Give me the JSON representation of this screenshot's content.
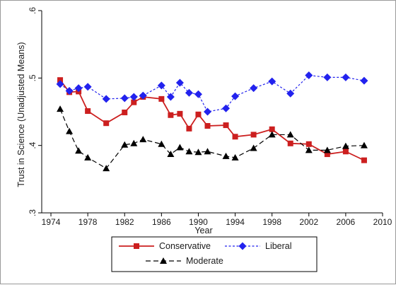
{
  "chart_data": {
    "type": "line",
    "title": "",
    "xlabel": "Year",
    "ylabel": "Trust in Science (Unadjusted Means)",
    "xlim": [
      1973,
      2010
    ],
    "ylim": [
      0.3,
      0.6
    ],
    "x_ticks": [
      1974,
      1978,
      1982,
      1986,
      1990,
      1994,
      1998,
      2002,
      2006,
      2010
    ],
    "x_tick_labels": [
      "1974",
      "1978",
      "1982",
      "1986",
      "1990",
      "1994",
      "1998",
      "2002",
      "2006",
      "2010"
    ],
    "y_ticks": [
      0.3,
      0.4,
      0.5,
      0.6
    ],
    "y_tick_labels": [
      ".3",
      ".4",
      ".5",
      ".6"
    ],
    "grid": false,
    "legend_position": "bottom",
    "series": [
      {
        "name": "Conservative",
        "color": "#cc1f1f",
        "line_style": "solid",
        "marker": "square",
        "x": [
          1975,
          1976,
          1977,
          1978,
          1980,
          1982,
          1983,
          1984,
          1986,
          1987,
          1988,
          1989,
          1990,
          1991,
          1993,
          1994,
          1996,
          1998,
          2000,
          2002,
          2004,
          2006,
          2008
        ],
        "y": [
          0.497,
          0.479,
          0.48,
          0.451,
          0.433,
          0.449,
          0.464,
          0.472,
          0.469,
          0.445,
          0.447,
          0.425,
          0.446,
          0.429,
          0.43,
          0.413,
          0.416,
          0.424,
          0.403,
          0.402,
          0.387,
          0.391,
          0.378
        ]
      },
      {
        "name": "Liberal",
        "color": "#2222ee",
        "line_style": "short-dash",
        "marker": "diamond",
        "x": [
          1975,
          1976,
          1977,
          1978,
          1980,
          1982,
          1983,
          1984,
          1986,
          1987,
          1988,
          1989,
          1990,
          1991,
          1993,
          1994,
          1996,
          1998,
          2000,
          2002,
          2004,
          2006,
          2008
        ],
        "y": [
          0.491,
          0.481,
          0.485,
          0.487,
          0.469,
          0.47,
          0.472,
          0.474,
          0.489,
          0.472,
          0.493,
          0.478,
          0.476,
          0.45,
          0.455,
          0.473,
          0.485,
          0.495,
          0.477,
          0.504,
          0.501,
          0.501,
          0.496
        ]
      },
      {
        "name": "Moderate",
        "color": "#000000",
        "line_style": "long-dash",
        "marker": "triangle",
        "x": [
          1975,
          1976,
          1977,
          1978,
          1980,
          1982,
          1983,
          1984,
          1986,
          1987,
          1988,
          1989,
          1990,
          1991,
          1993,
          1994,
          1996,
          1998,
          2000,
          2002,
          2004,
          2006,
          2008
        ],
        "y": [
          0.454,
          0.421,
          0.392,
          0.382,
          0.366,
          0.401,
          0.403,
          0.409,
          0.402,
          0.387,
          0.397,
          0.391,
          0.39,
          0.391,
          0.384,
          0.382,
          0.396,
          0.416,
          0.416,
          0.393,
          0.393,
          0.399,
          0.4
        ]
      }
    ]
  }
}
